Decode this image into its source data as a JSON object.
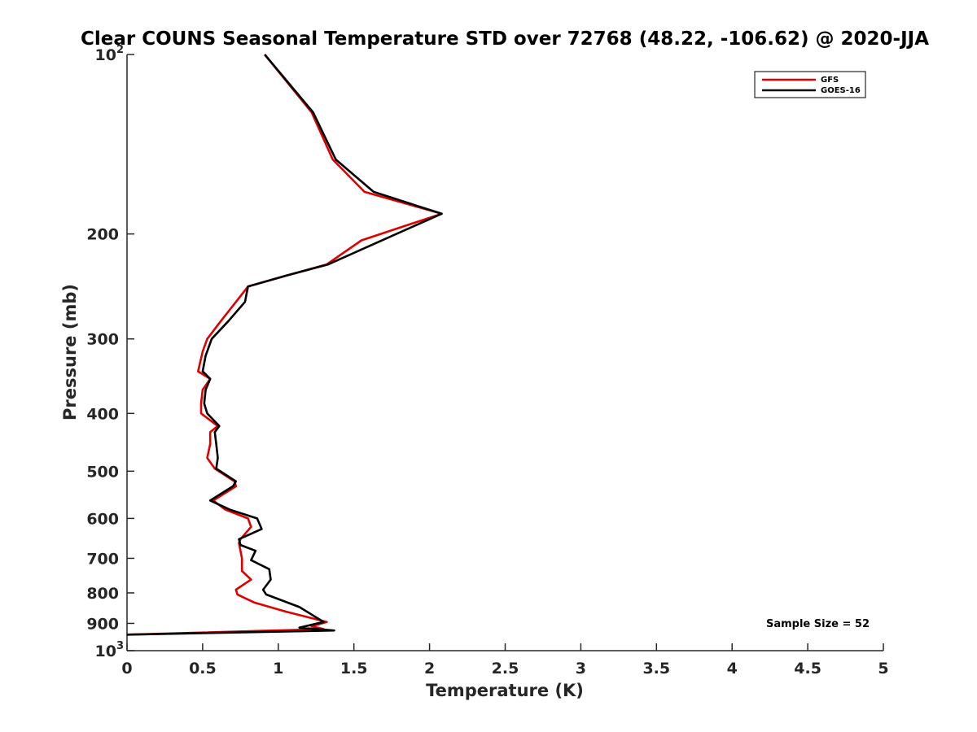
{
  "chart_data": {
    "type": "line",
    "title": "Clear COUNS Seasonal Temperature STD over 72768 (48.22, -106.62) @ 2020-JJA",
    "xlabel": "Temperature (K)",
    "ylabel": "Pressure (mb)",
    "xlim": [
      0,
      5
    ],
    "ylim": [
      100,
      1000
    ],
    "y_scale": "log",
    "y_reversed": true,
    "grid": false,
    "legend_position": "top-right",
    "x_ticks": [
      "0",
      "0.5",
      "1",
      "1.5",
      "2",
      "2.5",
      "3",
      "3.5",
      "4",
      "4.5",
      "5"
    ],
    "y_ticks": [
      {
        "value": 100,
        "label": "10",
        "exp": "2"
      },
      {
        "value": 200,
        "label": "200"
      },
      {
        "value": 300,
        "label": "300"
      },
      {
        "value": 400,
        "label": "400"
      },
      {
        "value": 500,
        "label": "500"
      },
      {
        "value": 600,
        "label": "600"
      },
      {
        "value": 700,
        "label": "700"
      },
      {
        "value": 800,
        "label": "800"
      },
      {
        "value": 900,
        "label": "900"
      },
      {
        "value": 1000,
        "label": "10",
        "exp": "3"
      }
    ],
    "series": [
      {
        "name": "GFS",
        "color": "#e00000",
        "points": [
          [
            0.91,
            100
          ],
          [
            1.22,
            125
          ],
          [
            1.36,
            150
          ],
          [
            1.57,
            170
          ],
          [
            2.08,
            185
          ],
          [
            1.55,
            205
          ],
          [
            1.32,
            225
          ],
          [
            1.05,
            235
          ],
          [
            0.8,
            245
          ],
          [
            0.72,
            260
          ],
          [
            0.62,
            280
          ],
          [
            0.53,
            300
          ],
          [
            0.5,
            315
          ],
          [
            0.47,
            340
          ],
          [
            0.55,
            350
          ],
          [
            0.5,
            365
          ],
          [
            0.49,
            385
          ],
          [
            0.49,
            400
          ],
          [
            0.6,
            420
          ],
          [
            0.55,
            430
          ],
          [
            0.55,
            450
          ],
          [
            0.53,
            475
          ],
          [
            0.58,
            495
          ],
          [
            0.71,
            520
          ],
          [
            0.72,
            530
          ],
          [
            0.57,
            560
          ],
          [
            0.65,
            580
          ],
          [
            0.8,
            600
          ],
          [
            0.82,
            620
          ],
          [
            0.75,
            650
          ],
          [
            0.74,
            660
          ],
          [
            0.76,
            700
          ],
          [
            0.76,
            735
          ],
          [
            0.82,
            760
          ],
          [
            0.72,
            790
          ],
          [
            0.73,
            805
          ],
          [
            0.84,
            830
          ],
          [
            1.05,
            860
          ],
          [
            1.32,
            895
          ],
          [
            1.22,
            910
          ],
          [
            1.3,
            920
          ],
          [
            0,
            940
          ]
        ]
      },
      {
        "name": "GOES-16",
        "color": "#000000",
        "points": [
          [
            0.91,
            100
          ],
          [
            1.23,
            125
          ],
          [
            1.38,
            150
          ],
          [
            1.63,
            170
          ],
          [
            2.08,
            185
          ],
          [
            1.78,
            200
          ],
          [
            1.33,
            225
          ],
          [
            1.05,
            235
          ],
          [
            0.8,
            245
          ],
          [
            0.78,
            260
          ],
          [
            0.67,
            280
          ],
          [
            0.56,
            300
          ],
          [
            0.52,
            320
          ],
          [
            0.5,
            340
          ],
          [
            0.55,
            350
          ],
          [
            0.52,
            365
          ],
          [
            0.51,
            385
          ],
          [
            0.53,
            400
          ],
          [
            0.61,
            420
          ],
          [
            0.58,
            430
          ],
          [
            0.59,
            450
          ],
          [
            0.6,
            475
          ],
          [
            0.59,
            495
          ],
          [
            0.72,
            520
          ],
          [
            0.7,
            530
          ],
          [
            0.55,
            560
          ],
          [
            0.68,
            580
          ],
          [
            0.86,
            600
          ],
          [
            0.89,
            625
          ],
          [
            0.74,
            650
          ],
          [
            0.75,
            665
          ],
          [
            0.85,
            680
          ],
          [
            0.82,
            705
          ],
          [
            0.94,
            730
          ],
          [
            0.95,
            760
          ],
          [
            0.9,
            790
          ],
          [
            0.92,
            805
          ],
          [
            1.14,
            845
          ],
          [
            1.3,
            895
          ],
          [
            1.14,
            915
          ],
          [
            1.37,
            925
          ],
          [
            0,
            940
          ]
        ]
      }
    ],
    "annotations": [
      {
        "text": "Sample Size = 52",
        "position": "bottom-right"
      }
    ]
  }
}
